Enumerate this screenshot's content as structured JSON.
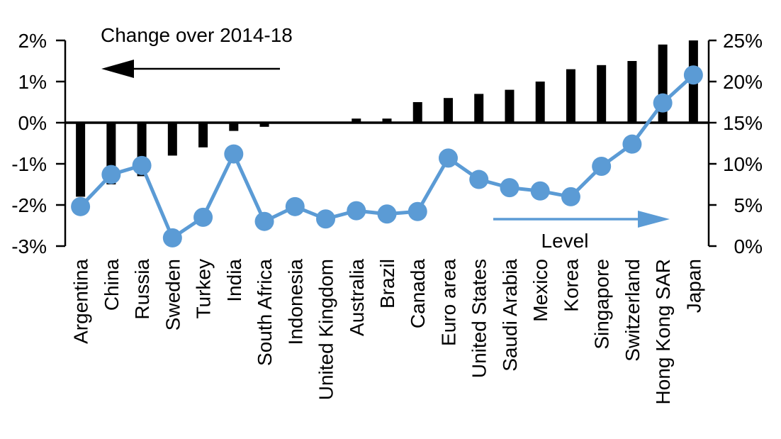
{
  "figure": {
    "background": "#ffffff",
    "annotations": {
      "bars_label": "Change over 2014-18",
      "line_label": "Level"
    },
    "icons": {
      "bars_arrow": "left-arrow",
      "line_arrow": "right-arrow"
    }
  },
  "chart_data": {
    "type": "combo",
    "title": "",
    "categories": [
      "Argentina",
      "China",
      "Russia",
      "Sweden",
      "Turkey",
      "India",
      "South Africa",
      "Indonesia",
      "United Kingdom",
      "Australia",
      "Brazil",
      "Canada",
      "Euro area",
      "United States",
      "Saudi Arabia",
      "Mexico",
      "Korea",
      "Singapore",
      "Switzerland",
      "Hong Kong SAR",
      "Japan"
    ],
    "series": [
      {
        "name": "Change over 2014-18",
        "type": "bar",
        "axis": "left",
        "color": "#000000",
        "values": [
          -1.8,
          -1.5,
          -1.3,
          -0.8,
          -0.6,
          -0.2,
          -0.1,
          0,
          0,
          0.1,
          0.1,
          0.5,
          0.6,
          0.7,
          0.8,
          1.0,
          1.3,
          1.4,
          1.5,
          1.9,
          2.0
        ]
      },
      {
        "name": "Level",
        "type": "line",
        "axis": "right",
        "color": "#5B9BD5",
        "values": [
          4.8,
          8.7,
          9.8,
          1.0,
          3.5,
          11.2,
          3.0,
          4.8,
          3.3,
          4.3,
          3.9,
          4.2,
          10.7,
          8.1,
          7.1,
          6.7,
          6.0,
          9.7,
          12.4,
          17.4,
          20.8
        ]
      }
    ],
    "left_axis": {
      "ticks": [
        "2%",
        "1%",
        "0%",
        "-1%",
        "-2%",
        "-3%"
      ],
      "min": -3,
      "max": 2,
      "unit": "%"
    },
    "right_axis": {
      "ticks": [
        "25%",
        "20%",
        "15%",
        "10%",
        "5%",
        "0%"
      ],
      "min": 0,
      "max": 25,
      "unit": "%"
    },
    "grid": false,
    "legend_position": "in-plot arrow annotations"
  }
}
